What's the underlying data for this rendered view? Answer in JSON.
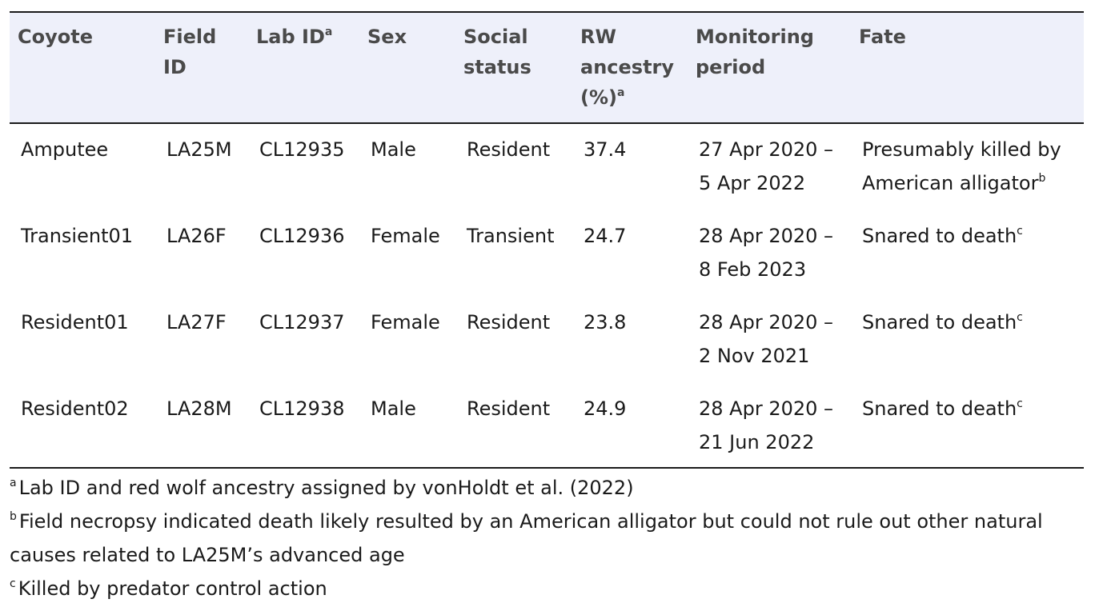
{
  "table": {
    "headers": [
      {
        "text": "Coyote",
        "sup": ""
      },
      {
        "text": "Field ID",
        "sup": ""
      },
      {
        "text": "Lab ID",
        "sup": "a"
      },
      {
        "text": "Sex",
        "sup": ""
      },
      {
        "text": "Social status",
        "sup": ""
      },
      {
        "text": "RW ancestry (%)",
        "sup": "a"
      },
      {
        "text": "Monitoring period",
        "sup": ""
      },
      {
        "text": "Fate",
        "sup": ""
      }
    ],
    "rows": [
      {
        "coyote": "Amputee",
        "field_id": "LA25M",
        "lab_id": "CL12935",
        "sex": "Male",
        "social_status": "Resident",
        "rw_ancestry": "37.4",
        "monitoring_period": "27 Apr 2020 – 5 Apr 2022",
        "fate": "Presumably killed by American alligator",
        "fate_sup": "b"
      },
      {
        "coyote": "Transient01",
        "field_id": "LA26F",
        "lab_id": "CL12936",
        "sex": "Female",
        "social_status": "Transient",
        "rw_ancestry": "24.7",
        "monitoring_period": "28 Apr 2020 – 8 Feb 2023",
        "fate": "Snared to death",
        "fate_sup": "c"
      },
      {
        "coyote": "Resident01",
        "field_id": "LA27F",
        "lab_id": "CL12937",
        "sex": "Female",
        "social_status": "Resident",
        "rw_ancestry": "23.8",
        "monitoring_period": "28 Apr 2020 – 2 Nov 2021",
        "fate": "Snared to death",
        "fate_sup": "c"
      },
      {
        "coyote": "Resident02",
        "field_id": "LA28M",
        "lab_id": "CL12938",
        "sex": "Male",
        "social_status": "Resident",
        "rw_ancestry": "24.9",
        "monitoring_period": "28 Apr 2020 – 21 Jun 2022",
        "fate": "Snared to death",
        "fate_sup": "c"
      }
    ]
  },
  "footnotes": [
    {
      "mark": "a",
      "text": "Lab ID and red wolf ancestry assigned by vonHoldt et al. (2022)"
    },
    {
      "mark": "b",
      "text": "Field necropsy indicated death likely resulted by an American alligator but could not rule out other natural causes related to LA25M’s advanced age"
    },
    {
      "mark": "c",
      "text": "Killed by predator control action"
    }
  ]
}
